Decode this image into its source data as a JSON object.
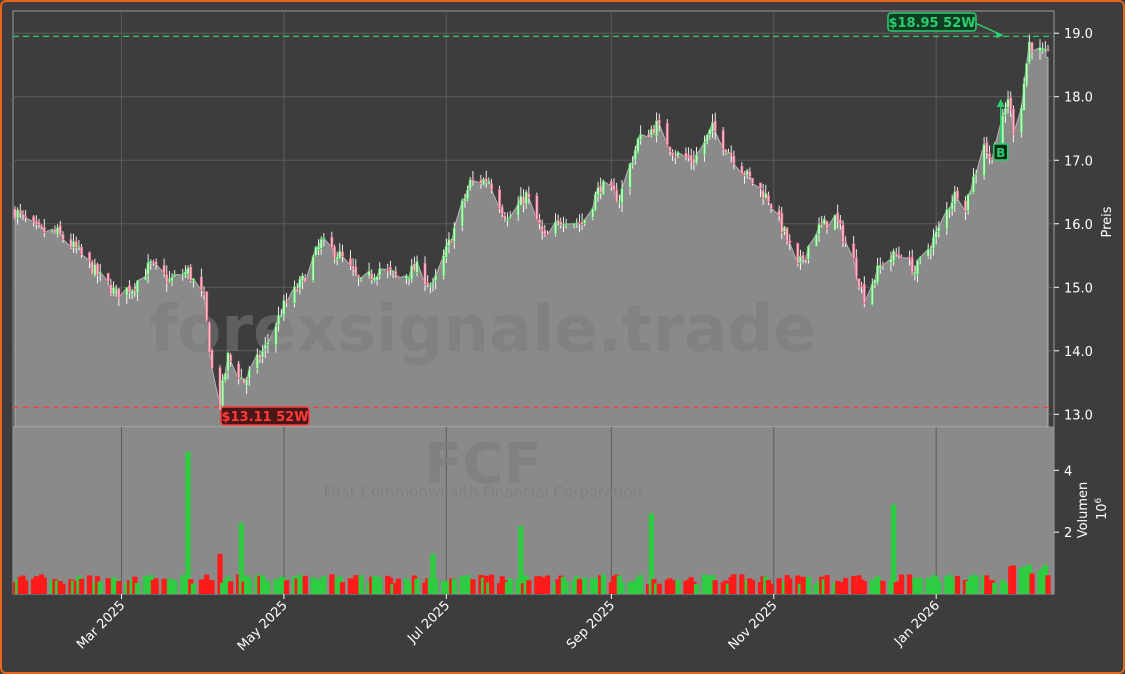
{
  "chart_data": {
    "type": "candlestick",
    "watermark": {
      "main": "forexsignale.trade",
      "ticker": "FCF",
      "company": "First Commonwealth Financial Corporation"
    },
    "price_axis": {
      "label": "Preis",
      "ylim": [
        12.8,
        19.35
      ],
      "ticks": [
        "13.0",
        "14.0",
        "15.0",
        "16.0",
        "17.0",
        "18.0",
        "19.0"
      ]
    },
    "volume_axis": {
      "label": "Volumen",
      "multiplier": "10",
      "exponent": "6",
      "ylim": [
        0,
        5.4
      ],
      "ticks": [
        "2",
        "4"
      ]
    },
    "x_axis": {
      "labels": [
        {
          "label": "Mar 2025",
          "date": "2025-03-01"
        },
        {
          "label": "May 2025",
          "date": "2025-05-01"
        },
        {
          "label": "Jul 2025",
          "date": "2025-07-01"
        },
        {
          "label": "Sep 2025",
          "date": "2025-09-01"
        },
        {
          "label": "Nov 2025",
          "date": "2025-11-01"
        },
        {
          "label": "Jan 2026",
          "date": "2026-01-01"
        }
      ],
      "range": [
        "2025-01-20",
        "2026-02-12"
      ]
    },
    "annotations": {
      "high": {
        "text": "$18.95 52W",
        "value": 18.95,
        "date": "2026-01-26",
        "color": "#2ecc71"
      },
      "low": {
        "text": "$13.11 52W",
        "value": 13.11,
        "date": "2025-04-07",
        "color": "#ff3b3b"
      },
      "buy": {
        "text": "B",
        "date": "2026-01-23",
        "value": 17.1
      }
    },
    "last_value": 18.62,
    "colors": {
      "up": "#2ecc40",
      "down": "#ff1a1a",
      "area": "#8a8a8a",
      "panel": "#3d3d3d",
      "accent": "#e8651a"
    },
    "price_anchors": [
      [
        "2025-01-20",
        16.2
      ],
      [
        "2025-01-28",
        15.9
      ],
      [
        "2025-02-05",
        15.85
      ],
      [
        "2025-02-12",
        15.6
      ],
      [
        "2025-02-20",
        15.2
      ],
      [
        "2025-02-27",
        14.9
      ],
      [
        "2025-03-05",
        15.0
      ],
      [
        "2025-03-12",
        15.35
      ],
      [
        "2025-03-19",
        15.1
      ],
      [
        "2025-03-26",
        15.25
      ],
      [
        "2025-04-01",
        14.8
      ],
      [
        "2025-04-04",
        13.7
      ],
      [
        "2025-04-07",
        13.2
      ],
      [
        "2025-04-10",
        13.9
      ],
      [
        "2025-04-16",
        13.5
      ],
      [
        "2025-04-24",
        14.05
      ],
      [
        "2025-05-01",
        14.7
      ],
      [
        "2025-05-08",
        15.1
      ],
      [
        "2025-05-15",
        15.7
      ],
      [
        "2025-05-22",
        15.5
      ],
      [
        "2025-05-30",
        15.05
      ],
      [
        "2025-06-06",
        15.3
      ],
      [
        "2025-06-13",
        15.15
      ],
      [
        "2025-06-20",
        15.3
      ],
      [
        "2025-06-26",
        15.0
      ],
      [
        "2025-07-03",
        15.8
      ],
      [
        "2025-07-10",
        16.65
      ],
      [
        "2025-07-17",
        16.7
      ],
      [
        "2025-07-24",
        16.05
      ],
      [
        "2025-07-31",
        16.45
      ],
      [
        "2025-08-07",
        15.75
      ],
      [
        "2025-08-14",
        16.1
      ],
      [
        "2025-08-21",
        16.0
      ],
      [
        "2025-08-28",
        16.6
      ],
      [
        "2025-09-04",
        16.4
      ],
      [
        "2025-09-11",
        17.3
      ],
      [
        "2025-09-18",
        17.55
      ],
      [
        "2025-09-25",
        17.1
      ],
      [
        "2025-10-02",
        17.0
      ],
      [
        "2025-10-09",
        17.5
      ],
      [
        "2025-10-16",
        17.1
      ],
      [
        "2025-10-23",
        16.7
      ],
      [
        "2025-10-30",
        16.4
      ],
      [
        "2025-11-05",
        15.85
      ],
      [
        "2025-11-10",
        15.3
      ],
      [
        "2025-11-17",
        15.9
      ],
      [
        "2025-11-24",
        16.1
      ],
      [
        "2025-12-01",
        15.4
      ],
      [
        "2025-12-05",
        14.85
      ],
      [
        "2025-12-12",
        15.4
      ],
      [
        "2025-12-19",
        15.55
      ],
      [
        "2025-12-24",
        15.25
      ],
      [
        "2026-01-02",
        15.9
      ],
      [
        "2026-01-07",
        16.4
      ],
      [
        "2026-01-09",
        16.5
      ],
      [
        "2026-01-12",
        16.3
      ],
      [
        "2026-01-16",
        16.85
      ],
      [
        "2026-01-19",
        17.3
      ],
      [
        "2026-01-21",
        17.0
      ],
      [
        "2026-01-23",
        17.25
      ],
      [
        "2026-01-26",
        17.6
      ],
      [
        "2026-01-28",
        18.0
      ],
      [
        "2026-01-30",
        17.5
      ],
      [
        "2026-02-02",
        17.9
      ],
      [
        "2026-02-05",
        18.85
      ],
      [
        "2026-02-09",
        18.7
      ],
      [
        "2026-02-12",
        18.62
      ]
    ],
    "volume_spikes": [
      [
        "2025-03-27",
        4.6
      ],
      [
        "2025-04-07",
        1.3
      ],
      [
        "2025-04-16",
        2.3
      ],
      [
        "2025-06-27",
        1.3
      ],
      [
        "2025-07-30",
        2.2
      ],
      [
        "2025-09-17",
        2.6
      ],
      [
        "2025-12-17",
        2.9
      ],
      [
        "2026-02-09",
        1.2
      ]
    ]
  }
}
